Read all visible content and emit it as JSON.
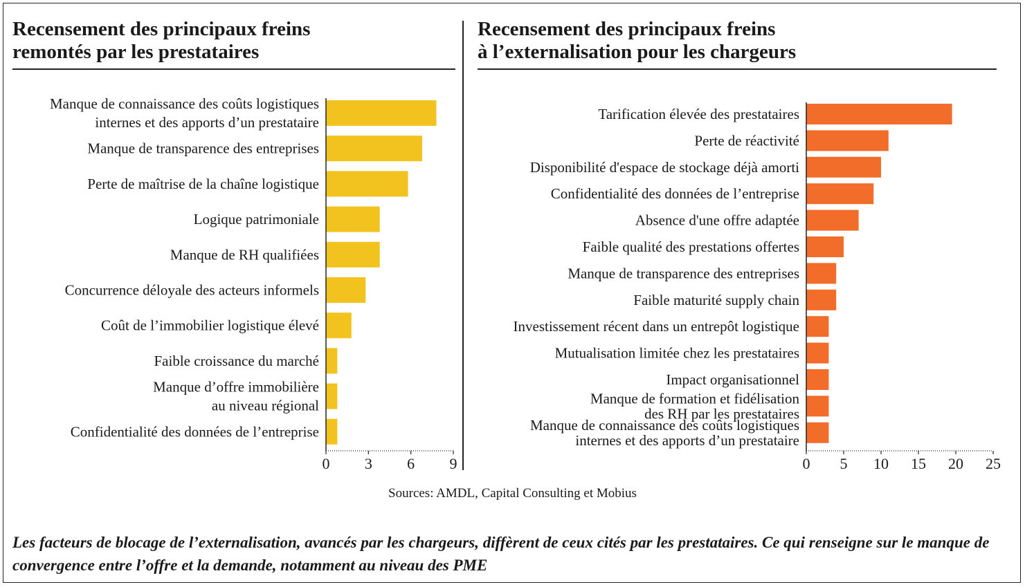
{
  "colors": {
    "left_bar": "#f2c31e",
    "right_bar": "#f26c2a",
    "axis": "#222222"
  },
  "chart_data": [
    {
      "type": "bar",
      "orientation": "horizontal",
      "title": "Recensement des principaux freins remontés par les prestataires",
      "title_lines": [
        "Recensement des principaux freins",
        "remontés par les prestataires"
      ],
      "categories": [
        "Manque de connaissance des coûts logistiques internes et des apports d’un prestataire",
        "Manque de transparence des entreprises",
        "Perte de maîtrise de la chaîne logistique",
        "Logique patrimoniale",
        "Manque de RH qualifiées",
        "Concurrence déloyale des acteurs informels",
        "Coût de l’immobilier logistique élevé",
        "Faible croissance du marché",
        "Manque d’offre immobilière au niveau régional",
        "Confidentialité des données de l’entreprise"
      ],
      "category_lines": [
        [
          "Manque de connaissance des coûts logistiques",
          "internes et des apports d’un prestataire"
        ],
        [
          "Manque de transparence des entreprises"
        ],
        [
          "Perte de maîtrise de la chaîne logistique"
        ],
        [
          "Logique patrimoniale"
        ],
        [
          "Manque de RH qualifiées"
        ],
        [
          "Concurrence déloyale des acteurs informels"
        ],
        [
          "Coût de l’immobilier logistique élevé"
        ],
        [
          "Faible croissance du marché"
        ],
        [
          "Manque d’offre immobilière",
          "au niveau régional"
        ],
        [
          "Confidentialité des données de l’entreprise"
        ]
      ],
      "values": [
        7.8,
        6.8,
        5.8,
        3.8,
        3.8,
        2.8,
        1.8,
        0.8,
        0.8,
        0.8
      ],
      "xlim": [
        0,
        9
      ],
      "xticks": [
        "0",
        "3",
        "6",
        "9"
      ],
      "grid": false
    },
    {
      "type": "bar",
      "orientation": "horizontal",
      "title": "Recensement des principaux freins à l’externalisation pour les chargeurs",
      "title_lines": [
        "Recensement des principaux freins",
        "à l’externalisation pour les chargeurs"
      ],
      "categories": [
        "Tarification élevée des prestataires",
        "Perte de réactivité",
        "Disponibilité d'espace de stockage déjà amorti",
        "Confidentialité des données de l’entreprise",
        "Absence d'une offre adaptée",
        "Faible qualité des prestations offertes",
        "Manque de transparence des entreprises",
        "Faible maturité supply chain",
        "Investissement récent dans un entrepôt logistique",
        "Mutualisation limitée chez les prestataires",
        "Impact organisationnel",
        "Manque de formation et fidélisation des RH par les prestataires",
        "Manque de connaissance des coûts logistiques internes et des apports d’un prestataire"
      ],
      "category_lines": [
        [
          "Tarification élevée des prestataires"
        ],
        [
          "Perte de réactivité"
        ],
        [
          "Disponibilité d'espace de stockage déjà amorti"
        ],
        [
          "Confidentialité des données de l’entreprise"
        ],
        [
          "Absence d'une offre adaptée"
        ],
        [
          "Faible qualité des prestations offertes"
        ],
        [
          "Manque de transparence des entreprises"
        ],
        [
          "Faible maturité supply chain"
        ],
        [
          "Investissement récent dans un entrepôt logistique"
        ],
        [
          "Mutualisation limitée chez les prestataires"
        ],
        [
          "Impact organisationnel"
        ],
        [
          "Manque de formation et fidélisation",
          "des RH par les prestataires"
        ],
        [
          "Manque de connaissance des coûts logistiques",
          "internes et des apports d’un prestataire"
        ]
      ],
      "values": [
        19.5,
        11,
        10,
        9,
        7,
        5,
        4,
        4,
        3,
        3,
        3,
        3,
        3
      ],
      "xlim": [
        0,
        25
      ],
      "xticks": [
        "0",
        "5",
        "10",
        "15",
        "20",
        "25"
      ],
      "grid": false
    }
  ],
  "source": "Sources: AMDL, Capital Consulting et Mobius",
  "caption": "Les facteurs de blocage de l’externalisation,  avancés par les chargeurs, diffèrent de ceux cités par les prestataires. Ce qui renseigne sur le manque de convergence entre l’offre et la demande,  notamment au niveau des PME"
}
